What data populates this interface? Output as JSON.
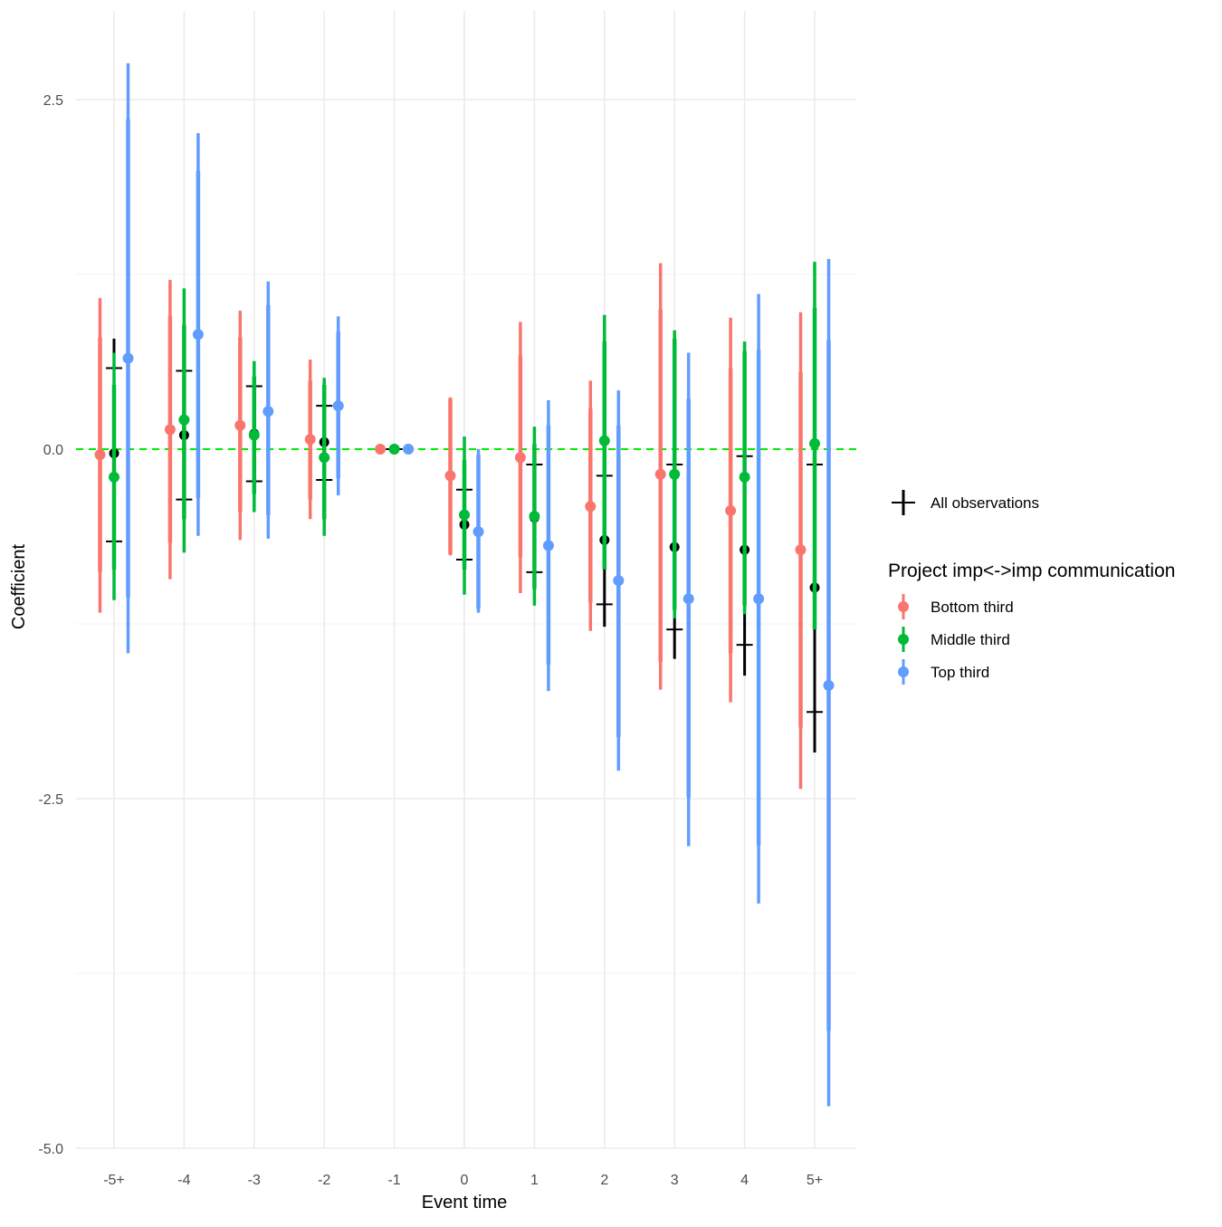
{
  "chart_data": {
    "type": "scatter",
    "xlabel": "Event time",
    "ylabel": "Coefficient",
    "categories": [
      "-5+",
      "-4",
      "-3",
      "-2",
      "-1",
      "0",
      "1",
      "2",
      "3",
      "4",
      "5+"
    ],
    "ylim": [
      -5.0,
      3.1
    ],
    "yticks": [
      2.5,
      0.0,
      -2.5,
      -5.0
    ],
    "ytick_labels": [
      "2.5",
      "0.0",
      "-2.5",
      "-5.0"
    ],
    "grid": true,
    "reference_line": {
      "y": 0,
      "color": "#00ee00",
      "style": "dashed"
    },
    "overall": {
      "name": "All observations",
      "color": "#000000",
      "estimate": [
        -0.03,
        0.1,
        0.11,
        0.05,
        0.0,
        -0.54,
        -0.49,
        -0.65,
        -0.7,
        -0.72,
        -0.99
      ],
      "ci90": [
        [
          -0.66,
          0.58
        ],
        [
          -0.36,
          0.56
        ],
        [
          -0.23,
          0.45
        ],
        [
          -0.22,
          0.31
        ],
        [
          0.0,
          0.0
        ],
        [
          -0.79,
          -0.29
        ],
        [
          -0.88,
          -0.11
        ],
        [
          -1.11,
          -0.19
        ],
        [
          -1.29,
          -0.11
        ],
        [
          -1.4,
          -0.05
        ],
        [
          -1.88,
          -0.11
        ]
      ],
      "ci95": [
        [
          -0.85,
          0.79
        ],
        [
          -0.45,
          0.67
        ],
        [
          -0.32,
          0.52
        ],
        [
          -0.3,
          0.39
        ],
        [
          0.0,
          0.0
        ],
        [
          -0.87,
          -0.21
        ],
        [
          -1.0,
          0.01
        ],
        [
          -1.27,
          -0.03
        ],
        [
          -1.5,
          0.11
        ],
        [
          -1.62,
          0.17
        ],
        [
          -2.17,
          0.19
        ]
      ]
    },
    "legend": {
      "placement": "right",
      "title": "Project imp<->imp communication"
    },
    "series": [
      {
        "name": "Bottom third",
        "color": "#f8766d",
        "estimate": [
          -0.04,
          0.14,
          0.17,
          0.07,
          0.0,
          -0.19,
          -0.06,
          -0.41,
          -0.18,
          -0.44,
          -0.72
        ],
        "ci90": [
          [
            -0.88,
            0.8
          ],
          [
            -0.67,
            0.95
          ],
          [
            -0.45,
            0.8
          ],
          [
            -0.36,
            0.49
          ],
          [
            0.0,
            0.0
          ],
          [
            -0.75,
            0.36
          ],
          [
            -0.77,
            0.67
          ],
          [
            -1.1,
            0.29
          ],
          [
            -1.52,
            1.0
          ],
          [
            -1.46,
            0.58
          ],
          [
            -1.99,
            0.55
          ]
        ],
        "ci95": [
          [
            -1.17,
            1.08
          ],
          [
            -0.93,
            1.21
          ],
          [
            -0.65,
            0.99
          ],
          [
            -0.5,
            0.64
          ],
          [
            0.0,
            0.0
          ],
          [
            -0.76,
            0.37
          ],
          [
            -1.03,
            0.91
          ],
          [
            -1.3,
            0.49
          ],
          [
            -1.72,
            1.33
          ],
          [
            -1.81,
            0.94
          ],
          [
            -2.43,
            0.98
          ]
        ]
      },
      {
        "name": "Middle third",
        "color": "#00ba38",
        "estimate": [
          -0.2,
          0.21,
          0.1,
          -0.06,
          0.0,
          -0.47,
          -0.48,
          0.06,
          -0.18,
          -0.2,
          0.04
        ],
        "ci90": [
          [
            -0.86,
            0.46
          ],
          [
            -0.5,
            0.89
          ],
          [
            -0.32,
            0.52
          ],
          [
            -0.5,
            0.46
          ],
          [
            0.0,
            0.0
          ],
          [
            -0.86,
            -0.08
          ],
          [
            -1.0,
            0.04
          ],
          [
            -0.86,
            0.77
          ],
          [
            -1.15,
            0.79
          ],
          [
            -1.12,
            0.7
          ],
          [
            -1.29,
            1.01
          ]
        ],
        "ci95": [
          [
            -1.08,
            0.69
          ],
          [
            -0.74,
            1.15
          ],
          [
            -0.45,
            0.63
          ],
          [
            -0.62,
            0.51
          ],
          [
            0.0,
            0.0
          ],
          [
            -1.04,
            0.09
          ],
          [
            -1.12,
            0.16
          ],
          [
            -0.85,
            0.96
          ],
          [
            -1.21,
            0.85
          ],
          [
            -1.18,
            0.77
          ],
          [
            -1.25,
            1.34
          ]
        ]
      },
      {
        "name": "Top third",
        "color": "#619cff",
        "estimate": [
          0.65,
          0.82,
          0.27,
          0.31,
          0.0,
          -0.59,
          -0.69,
          -0.94,
          -1.07,
          -1.07,
          -1.69
        ],
        "ci90": [
          [
            -1.06,
            2.36
          ],
          [
            -0.35,
            1.99
          ],
          [
            -0.47,
            1.03
          ],
          [
            -0.21,
            0.84
          ],
          [
            0.0,
            0.0
          ],
          [
            -1.14,
            -0.04
          ],
          [
            -1.54,
            0.17
          ],
          [
            -2.06,
            0.17
          ],
          [
            -2.49,
            0.36
          ],
          [
            -2.83,
            0.71
          ],
          [
            -4.16,
            0.78
          ]
        ],
        "ci95": [
          [
            -1.46,
            2.76
          ],
          [
            -0.62,
            2.26
          ],
          [
            -0.64,
            1.2
          ],
          [
            -0.33,
            0.95
          ],
          [
            0.0,
            0.0
          ],
          [
            -1.17,
            0.0
          ],
          [
            -1.73,
            0.35
          ],
          [
            -2.3,
            0.42
          ],
          [
            -2.84,
            0.69
          ],
          [
            -3.25,
            1.11
          ],
          [
            -4.7,
            1.36
          ]
        ]
      }
    ]
  }
}
